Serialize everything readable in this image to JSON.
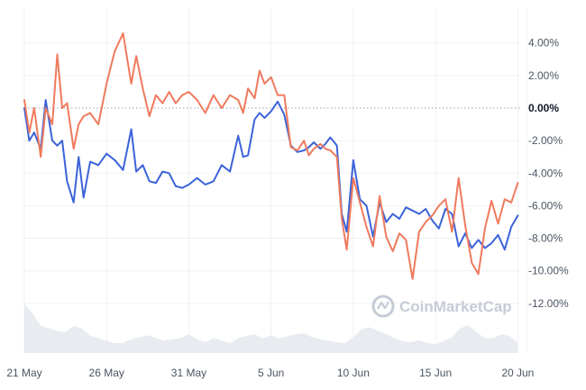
{
  "chart_data": {
    "type": "line",
    "watermark": "CoinMarketCap",
    "colors": {
      "series_blue": "#3b63d9",
      "series_orange": "#ef7a5d",
      "grid": "#eef0f3",
      "zero_line": "#9aa3af",
      "volume_area": "#e8ebf0"
    },
    "grid": true,
    "y_axis": {
      "position": "right",
      "ylim": [
        -14.5,
        6.2
      ],
      "ticks": [
        4,
        2,
        0,
        -2,
        -4,
        -6,
        -8,
        -10,
        -12
      ],
      "tick_labels": [
        "4.00%",
        "2.00%",
        "0.00%",
        "-2.00%",
        "-4.00%",
        "-6.00%",
        "-8.00%",
        "-10.00%",
        "-12.00%"
      ]
    },
    "x_axis": {
      "xlim": [
        0,
        30.2
      ],
      "ticks": [
        0,
        5,
        10,
        15,
        20,
        25,
        30
      ],
      "tick_labels": [
        "21 May",
        "26 May",
        "31 May",
        "5 Jun",
        "10 Jun",
        "15 Jun",
        "20 Jun"
      ]
    },
    "series": [
      {
        "color_key": "series_blue",
        "x": [
          0,
          0.3,
          0.6,
          1,
          1.3,
          1.7,
          2,
          2.3,
          2.6,
          3,
          3.3,
          3.6,
          4,
          4.5,
          5,
          5.5,
          6,
          6.5,
          6.8,
          7.2,
          7.6,
          8,
          8.4,
          8.8,
          9.2,
          9.6,
          10,
          10.5,
          11,
          11.5,
          12,
          12.5,
          13,
          13.3,
          13.6,
          14,
          14.3,
          14.6,
          15,
          15.4,
          15.8,
          16.2,
          16.6,
          17,
          17.3,
          17.6,
          18,
          18.3,
          18.6,
          19,
          19.3,
          19.6,
          20,
          20.4,
          20.8,
          21.2,
          21.6,
          22,
          22.4,
          22.8,
          23.2,
          23.6,
          24,
          24.4,
          24.8,
          25.2,
          25.6,
          26,
          26.4,
          26.8,
          27.2,
          27.6,
          28,
          28.4,
          28.8,
          29.2,
          29.6,
          30
        ],
        "values": [
          0,
          -2,
          -1.5,
          -2.5,
          0.5,
          -2,
          -2.3,
          -2,
          -4.5,
          -5.8,
          -3,
          -5.5,
          -3.3,
          -3.5,
          -2.8,
          -3.2,
          -3.8,
          -1.3,
          -3.9,
          -3.5,
          -4.5,
          -4.6,
          -3.9,
          -4,
          -4.8,
          -4.9,
          -4.7,
          -4.3,
          -4.7,
          -4.5,
          -3.5,
          -3.9,
          -1.7,
          -3,
          -2.9,
          -0.7,
          -0.3,
          -0.6,
          -0.2,
          0.4,
          -0.4,
          -2.3,
          -2.7,
          -2.6,
          -2.4,
          -2.1,
          -2.5,
          -2.2,
          -1.8,
          -2.3,
          -6.5,
          -7.6,
          -3.2,
          -5.6,
          -6,
          -7.9,
          -5.8,
          -7,
          -6.5,
          -6.8,
          -6.1,
          -6.3,
          -6.5,
          -6.2,
          -6.9,
          -7.4,
          -6.2,
          -6.5,
          -8.5,
          -7.7,
          -8.6,
          -8.1,
          -8.6,
          -8.3,
          -7.8,
          -8.7,
          -7.3,
          -6.6
        ]
      },
      {
        "color_key": "series_orange",
        "x": [
          0,
          0.3,
          0.6,
          1,
          1.3,
          1.7,
          2,
          2.3,
          2.6,
          3,
          3.3,
          3.6,
          4,
          4.5,
          5,
          5.5,
          6,
          6.5,
          6.8,
          7.2,
          7.6,
          8,
          8.4,
          8.8,
          9.2,
          9.6,
          10,
          10.5,
          11,
          11.5,
          12,
          12.5,
          13,
          13.3,
          13.6,
          14,
          14.3,
          14.6,
          15,
          15.4,
          15.8,
          16.2,
          16.6,
          17,
          17.3,
          17.6,
          18,
          18.3,
          18.6,
          19,
          19.3,
          19.6,
          20,
          20.4,
          20.8,
          21.2,
          21.6,
          22,
          22.4,
          22.8,
          23.2,
          23.6,
          24,
          24.4,
          24.8,
          25.2,
          25.6,
          26,
          26.4,
          26.8,
          27.2,
          27.6,
          28,
          28.4,
          28.8,
          29.2,
          29.6,
          30
        ],
        "values": [
          0.5,
          -1.5,
          0,
          -3,
          0,
          -1,
          3.3,
          0,
          0.3,
          -2.5,
          -1,
          -0.5,
          -0.3,
          -1,
          1.5,
          3.5,
          4.6,
          1.5,
          3.2,
          1.2,
          -0.5,
          0.8,
          0.3,
          1,
          0.3,
          0.8,
          1,
          0.5,
          -0.3,
          0.8,
          0,
          0.8,
          0.5,
          -0.3,
          1.2,
          0.6,
          2.3,
          1.5,
          1.9,
          0.8,
          0.8,
          -2.4,
          -2.6,
          -2,
          -2.9,
          -2.5,
          -2.2,
          -2.5,
          -2.6,
          -3,
          -6.8,
          -8.7,
          -4.3,
          -5.8,
          -7.3,
          -8.5,
          -5.4,
          -7.9,
          -8.8,
          -7.7,
          -8.1,
          -10.5,
          -7.6,
          -7,
          -6.6,
          -6,
          -5.6,
          -7.6,
          -4.3,
          -7.2,
          -9.5,
          -10.2,
          -7.4,
          -5.7,
          -7.1,
          -5.6,
          -5.8,
          -4.6
        ]
      }
    ],
    "volume_area": {
      "x": [
        0,
        0.5,
        1,
        1.5,
        2,
        2.5,
        3,
        3.5,
        4,
        4.5,
        5,
        5.5,
        6,
        6.5,
        7,
        7.5,
        8,
        8.5,
        9,
        9.5,
        10,
        10.5,
        11,
        11.5,
        12,
        12.5,
        13,
        13.5,
        14,
        14.5,
        15,
        15.5,
        16,
        16.5,
        17,
        17.5,
        18,
        18.5,
        19,
        19.5,
        20,
        20.5,
        21,
        21.5,
        22,
        22.5,
        23,
        23.5,
        24,
        24.5,
        25,
        25.5,
        26,
        26.5,
        27,
        27.5,
        28,
        28.5,
        29,
        29.5,
        30
      ],
      "values": [
        1,
        0.8,
        0.55,
        0.5,
        0.45,
        0.42,
        0.55,
        0.5,
        0.35,
        0.3,
        0.25,
        0.2,
        0.2,
        0.28,
        0.32,
        0.36,
        0.3,
        0.25,
        0.28,
        0.3,
        0.38,
        0.28,
        0.22,
        0.3,
        0.25,
        0.2,
        0.3,
        0.35,
        0.38,
        0.3,
        0.36,
        0.3,
        0.34,
        0.38,
        0.4,
        0.32,
        0.28,
        0.25,
        0.22,
        0.2,
        0.32,
        0.48,
        0.52,
        0.45,
        0.38,
        0.3,
        0.24,
        0.22,
        0.26,
        0.2,
        0.18,
        0.24,
        0.32,
        0.5,
        0.56,
        0.42,
        0.3,
        0.3,
        0.38,
        0.34,
        0.2
      ]
    }
  }
}
